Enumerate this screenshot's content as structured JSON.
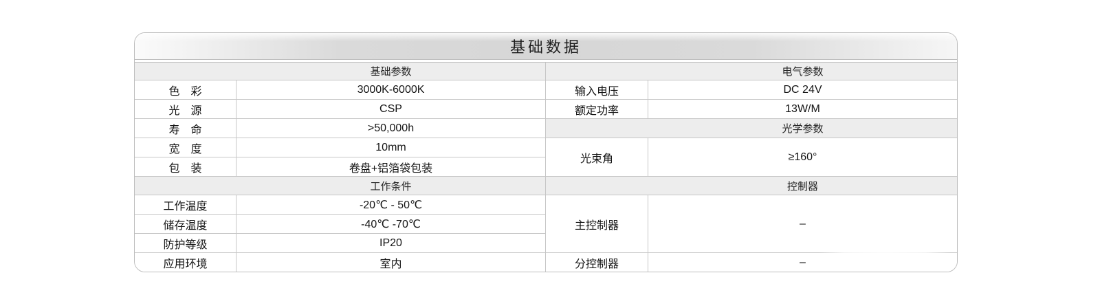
{
  "title": "基础数据",
  "colors": {
    "header_bg": "#ededed",
    "grid_line": "#c6c6c6",
    "outer_border": "#bdbdbd",
    "title_gradient_center": "#d6d6d6"
  },
  "table": {
    "left": {
      "section1": {
        "header": "基础参数",
        "rows": [
          {
            "label": "色　彩",
            "value": "3000K-6000K"
          },
          {
            "label": "光　源",
            "value": "CSP"
          },
          {
            "label": "寿　命",
            "value": ">50,000h"
          },
          {
            "label": "宽　度",
            "value": "10mm"
          },
          {
            "label": "包　装",
            "value": "卷盘+铝箔袋包装"
          }
        ]
      },
      "section2": {
        "header": "工作条件",
        "rows": [
          {
            "label": "工作温度",
            "value": "-20℃ - 50℃"
          },
          {
            "label": "储存温度",
            "value": "-40℃ -70℃"
          },
          {
            "label": "防护等级",
            "value": "IP20"
          },
          {
            "label": "应用环境",
            "value": "室内"
          }
        ]
      }
    },
    "right": {
      "section1": {
        "header": "电气参数",
        "rows": [
          {
            "label": "输入电压",
            "value": "DC 24V"
          },
          {
            "label": "额定功率",
            "value": "13W/M"
          }
        ]
      },
      "section2": {
        "header": "光学参数",
        "rows": [
          {
            "label": "光束角",
            "value": "≥160°"
          }
        ]
      },
      "section3": {
        "header": "控制器",
        "rows": [
          {
            "label": "主控制器",
            "value": "–"
          },
          {
            "label": "分控制器",
            "value": "–"
          }
        ]
      }
    }
  }
}
